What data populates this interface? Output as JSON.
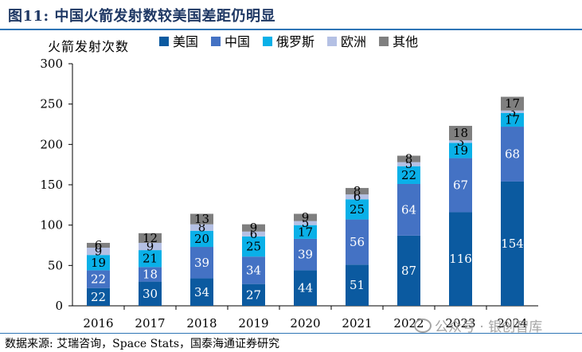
{
  "figure": {
    "title": "图11:  中国火箭发射数较美国差距仍明显",
    "source": "数据来源:  艾瑞咨询，Space Stats，国泰海通证券研究",
    "watermark": "公众号 · 银创智库"
  },
  "chart_data": {
    "type": "bar",
    "stacked": true,
    "title": "",
    "ylabel": "火箭发射次数",
    "xlabel": "",
    "ylim": [
      0,
      300
    ],
    "yticks": [
      0,
      50,
      100,
      150,
      200,
      250,
      300
    ],
    "categories": [
      "2016",
      "2017",
      "2018",
      "2019",
      "2020",
      "2021",
      "2022",
      "2023",
      "2024"
    ],
    "legend_position": "top",
    "series": [
      {
        "name": "美国",
        "color": "#0b5aa0",
        "label_color": "#ffffff",
        "values": [
          22,
          30,
          34,
          27,
          44,
          51,
          87,
          116,
          154
        ]
      },
      {
        "name": "中国",
        "color": "#4472c4",
        "label_color": "#ffffff",
        "values": [
          22,
          18,
          39,
          34,
          39,
          56,
          64,
          67,
          68
        ]
      },
      {
        "name": "俄罗斯",
        "color": "#0ab0e8",
        "label_color": "#000000",
        "values": [
          19,
          21,
          20,
          25,
          17,
          25,
          22,
          19,
          17
        ]
      },
      {
        "name": "欧洲",
        "color": "#b4c0e4",
        "label_color": "#000000",
        "values": [
          9,
          9,
          8,
          6,
          5,
          6,
          5,
          3,
          3
        ]
      },
      {
        "name": "其他",
        "color": "#7f7f7f",
        "label_color": "#000000",
        "values": [
          6,
          12,
          13,
          9,
          9,
          8,
          8,
          18,
          17
        ]
      }
    ]
  }
}
